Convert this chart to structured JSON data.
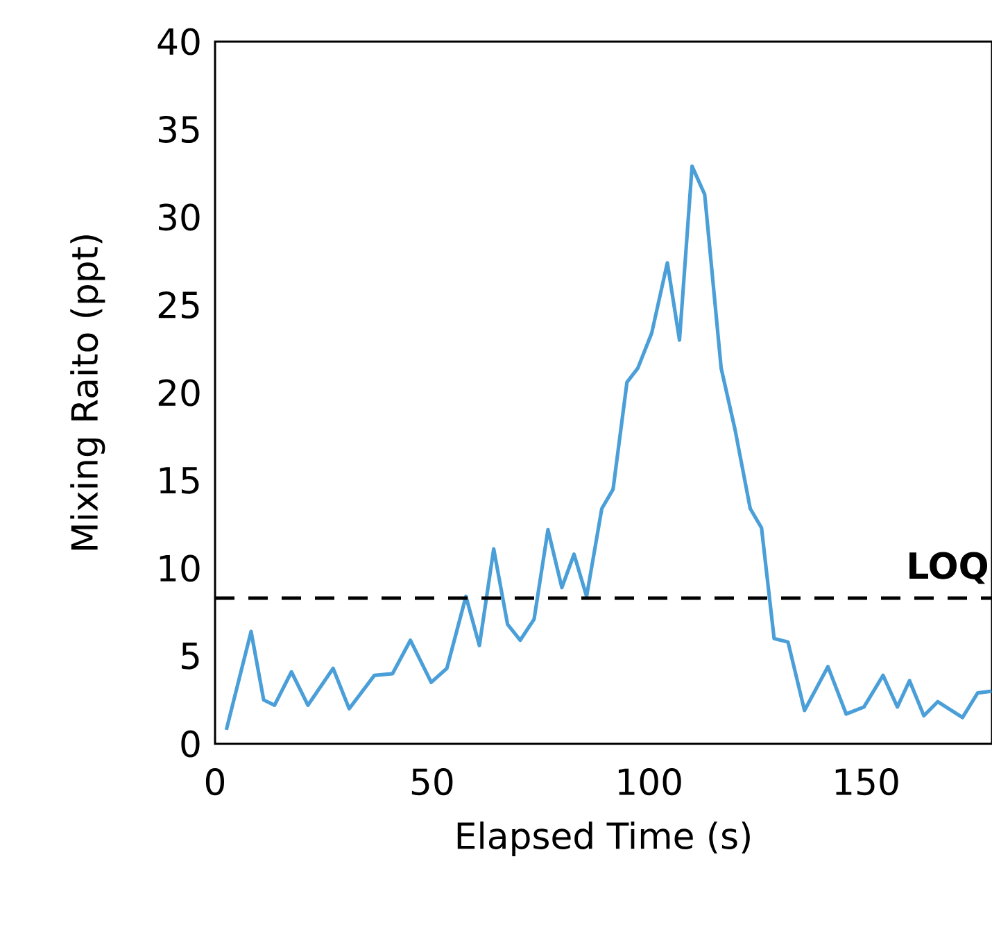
{
  "chart_data": {
    "type": "line",
    "xlabel": "Elapsed Time (s)",
    "ylabel": "Mixing Raito (ppt)",
    "xlim": [
      0,
      179
    ],
    "ylim": [
      0,
      40
    ],
    "xticks": [
      0,
      50,
      100,
      150
    ],
    "yticks": [
      0,
      5,
      10,
      15,
      20,
      25,
      30,
      35,
      40
    ],
    "grid": false,
    "marker": "none",
    "line_style": "solid",
    "ref_lines": [
      {
        "axis": "y",
        "value": 8.3,
        "label": "LOQ",
        "color": "#000000",
        "line_style": "dashed"
      }
    ],
    "series": [
      {
        "color": "#4a9fd8",
        "x": [
          2.6,
          8.3,
          11.2,
          13.7,
          17.6,
          21.4,
          27.2,
          30.9,
          36.7,
          40.9,
          45,
          49.8,
          53.4,
          57.8,
          60.9,
          64.2,
          67.4,
          70.3,
          73.5,
          76.7,
          79.9,
          82.7,
          85.6,
          89.1,
          91.7,
          94.9,
          97.4,
          100.6,
          104.2,
          107.0,
          109.9,
          112.8,
          116.6,
          119.8,
          123.3,
          125.9,
          128.8,
          132,
          135.8,
          141.2,
          145.4,
          149.5,
          153.9,
          157.2,
          160,
          163.3,
          166.5,
          172.2,
          175.7,
          178.9
        ],
        "values": [
          0.8,
          6.4,
          2.5,
          2.2,
          4.1,
          2.2,
          4.3,
          2.0,
          3.9,
          4.0,
          5.9,
          3.5,
          4.3,
          8.4,
          5.6,
          11.1,
          6.8,
          5.9,
          7.1,
          12.2,
          8.9,
          10.8,
          8.4,
          13.4,
          14.5,
          20.6,
          21.4,
          23.4,
          27.4,
          23.0,
          32.9,
          31.3,
          21.4,
          17.9,
          13.4,
          12.3,
          6.0,
          5.8,
          1.9,
          4.4,
          1.7,
          2.1,
          3.9,
          2.1,
          3.6,
          1.6,
          2.4,
          1.5,
          2.9,
          3.0
        ]
      }
    ]
  }
}
